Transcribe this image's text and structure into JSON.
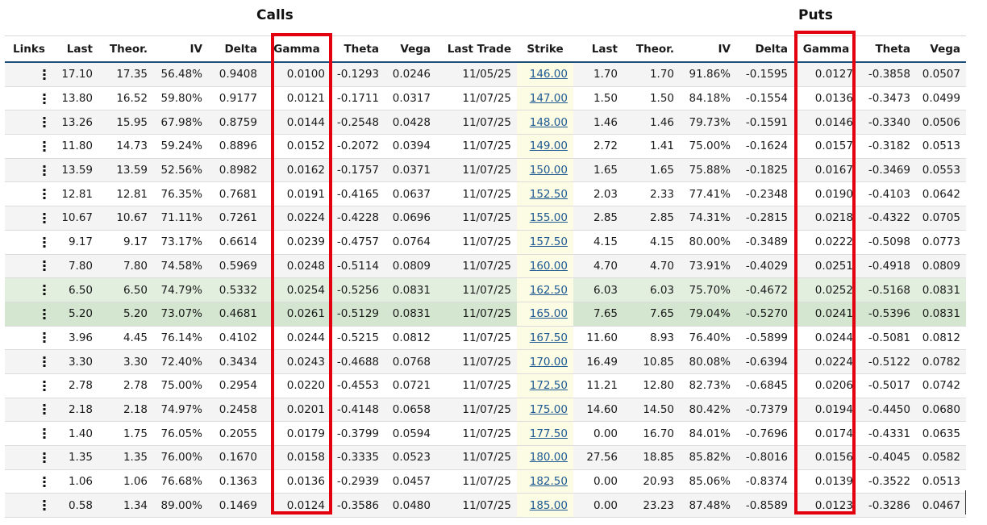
{
  "groups": {
    "calls": "Calls",
    "puts": "Puts"
  },
  "columns": {
    "links": "Links",
    "last": "Last",
    "theor": "Theor.",
    "iv": "IV",
    "delta": "Delta",
    "gamma": "Gamma",
    "theta": "Theta",
    "vega": "Vega",
    "last_trade": "Last Trade",
    "strike": "Strike",
    "put_last": "Last",
    "put_theor": "Theor.",
    "put_iv": "IV",
    "put_delta": "Delta",
    "put_gamma": "Gamma",
    "put_theta": "Theta",
    "put_vega": "Vega"
  },
  "links_icon": "vertical-dots-icon",
  "colors": {
    "highlight": "#e3000f",
    "header_rule": "#1e4f7a",
    "strike_bg": "#fcfbe3",
    "strike_link": "#1f5a93",
    "itm_row": "#e2efdf",
    "atm_row": "#d4e6d0"
  },
  "rows": [
    {
      "call": [
        "17.10",
        "17.35",
        "56.48%",
        "0.9408",
        "0.0100",
        "-0.1293",
        "0.0246",
        "11/05/25"
      ],
      "strike": "146.00",
      "put": [
        "1.70",
        "1.70",
        "91.86%",
        "-0.1595",
        "0.0127",
        "-0.3858",
        "0.0507"
      ]
    },
    {
      "call": [
        "13.80",
        "16.52",
        "59.80%",
        "0.9177",
        "0.0121",
        "-0.1711",
        "0.0317",
        "11/07/25"
      ],
      "strike": "147.00",
      "put": [
        "1.50",
        "1.50",
        "84.18%",
        "-0.1554",
        "0.0136",
        "-0.3473",
        "0.0499"
      ]
    },
    {
      "call": [
        "13.26",
        "15.95",
        "67.98%",
        "0.8759",
        "0.0144",
        "-0.2548",
        "0.0428",
        "11/07/25"
      ],
      "strike": "148.00",
      "put": [
        "1.46",
        "1.46",
        "79.73%",
        "-0.1591",
        "0.0146",
        "-0.3340",
        "0.0506"
      ]
    },
    {
      "call": [
        "11.80",
        "14.73",
        "59.24%",
        "0.8896",
        "0.0152",
        "-0.2072",
        "0.0394",
        "11/07/25"
      ],
      "strike": "149.00",
      "put": [
        "2.72",
        "1.41",
        "75.00%",
        "-0.1624",
        "0.0157",
        "-0.3182",
        "0.0513"
      ]
    },
    {
      "call": [
        "13.59",
        "13.59",
        "52.56%",
        "0.8982",
        "0.0162",
        "-0.1757",
        "0.0371",
        "11/07/25"
      ],
      "strike": "150.00",
      "put": [
        "1.65",
        "1.65",
        "75.88%",
        "-0.1825",
        "0.0167",
        "-0.3469",
        "0.0553"
      ]
    },
    {
      "call": [
        "12.81",
        "12.81",
        "76.35%",
        "0.7681",
        "0.0191",
        "-0.4165",
        "0.0637",
        "11/07/25"
      ],
      "strike": "152.50",
      "put": [
        "2.03",
        "2.33",
        "77.41%",
        "-0.2348",
        "0.0190",
        "-0.4103",
        "0.0642"
      ]
    },
    {
      "call": [
        "10.67",
        "10.67",
        "71.11%",
        "0.7261",
        "0.0224",
        "-0.4228",
        "0.0696",
        "11/07/25"
      ],
      "strike": "155.00",
      "put": [
        "2.85",
        "2.85",
        "74.31%",
        "-0.2815",
        "0.0218",
        "-0.4322",
        "0.0705"
      ]
    },
    {
      "call": [
        "9.17",
        "9.17",
        "73.17%",
        "0.6614",
        "0.0239",
        "-0.4757",
        "0.0764",
        "11/07/25"
      ],
      "strike": "157.50",
      "put": [
        "4.15",
        "4.15",
        "80.00%",
        "-0.3489",
        "0.0222",
        "-0.5098",
        "0.0773"
      ]
    },
    {
      "call": [
        "7.80",
        "7.80",
        "74.58%",
        "0.5969",
        "0.0248",
        "-0.5114",
        "0.0809",
        "11/07/25"
      ],
      "strike": "160.00",
      "put": [
        "4.70",
        "4.70",
        "73.91%",
        "-0.4029",
        "0.0251",
        "-0.4918",
        "0.0809"
      ]
    },
    {
      "call": [
        "6.50",
        "6.50",
        "74.79%",
        "0.5332",
        "0.0254",
        "-0.5256",
        "0.0831",
        "11/07/25"
      ],
      "strike": "162.50",
      "put": [
        "6.03",
        "6.03",
        "75.70%",
        "-0.4672",
        "0.0252",
        "-0.5168",
        "0.0831"
      ]
    },
    {
      "call": [
        "5.20",
        "5.20",
        "73.07%",
        "0.4681",
        "0.0261",
        "-0.5129",
        "0.0831",
        "11/07/25"
      ],
      "strike": "165.00",
      "put": [
        "7.65",
        "7.65",
        "79.04%",
        "-0.5270",
        "0.0241",
        "-0.5396",
        "0.0831"
      ]
    },
    {
      "call": [
        "3.96",
        "4.45",
        "76.14%",
        "0.4102",
        "0.0244",
        "-0.5215",
        "0.0812",
        "11/07/25"
      ],
      "strike": "167.50",
      "put": [
        "11.60",
        "8.93",
        "76.40%",
        "-0.5899",
        "0.0244",
        "-0.5081",
        "0.0812"
      ]
    },
    {
      "call": [
        "3.30",
        "3.30",
        "72.40%",
        "0.3434",
        "0.0243",
        "-0.4688",
        "0.0768",
        "11/07/25"
      ],
      "strike": "170.00",
      "put": [
        "16.49",
        "10.85",
        "80.08%",
        "-0.6394",
        "0.0224",
        "-0.5122",
        "0.0782"
      ]
    },
    {
      "call": [
        "2.78",
        "2.78",
        "75.00%",
        "0.2954",
        "0.0220",
        "-0.4553",
        "0.0721",
        "11/07/25"
      ],
      "strike": "172.50",
      "put": [
        "11.21",
        "12.80",
        "82.73%",
        "-0.6845",
        "0.0206",
        "-0.5017",
        "0.0742"
      ]
    },
    {
      "call": [
        "2.18",
        "2.18",
        "74.97%",
        "0.2458",
        "0.0201",
        "-0.4148",
        "0.0658",
        "11/07/25"
      ],
      "strike": "175.00",
      "put": [
        "14.60",
        "14.50",
        "80.42%",
        "-0.7379",
        "0.0194",
        "-0.4450",
        "0.0680"
      ]
    },
    {
      "call": [
        "1.40",
        "1.75",
        "76.05%",
        "0.2055",
        "0.0179",
        "-0.3799",
        "0.0594",
        "11/07/25"
      ],
      "strike": "177.50",
      "put": [
        "0.00",
        "16.70",
        "84.01%",
        "-0.7696",
        "0.0174",
        "-0.4331",
        "0.0635"
      ]
    },
    {
      "call": [
        "1.35",
        "1.35",
        "76.00%",
        "0.1670",
        "0.0158",
        "-0.3335",
        "0.0523",
        "11/07/25"
      ],
      "strike": "180.00",
      "put": [
        "27.56",
        "18.85",
        "85.82%",
        "-0.8016",
        "0.0156",
        "-0.4045",
        "0.0582"
      ]
    },
    {
      "call": [
        "1.06",
        "1.06",
        "76.68%",
        "0.1363",
        "0.0136",
        "-0.2939",
        "0.0457",
        "11/07/25"
      ],
      "strike": "182.50",
      "put": [
        "0.00",
        "20.93",
        "85.06%",
        "-0.8374",
        "0.0139",
        "-0.3522",
        "0.0513"
      ]
    },
    {
      "call": [
        "0.58",
        "1.34",
        "89.00%",
        "0.1469",
        "0.0124",
        "-0.3586",
        "0.0480",
        "11/07/25"
      ],
      "strike": "185.00",
      "put": [
        "0.00",
        "23.23",
        "87.48%",
        "-0.8589",
        "0.0123",
        "-0.3286",
        "0.0467"
      ]
    }
  ]
}
